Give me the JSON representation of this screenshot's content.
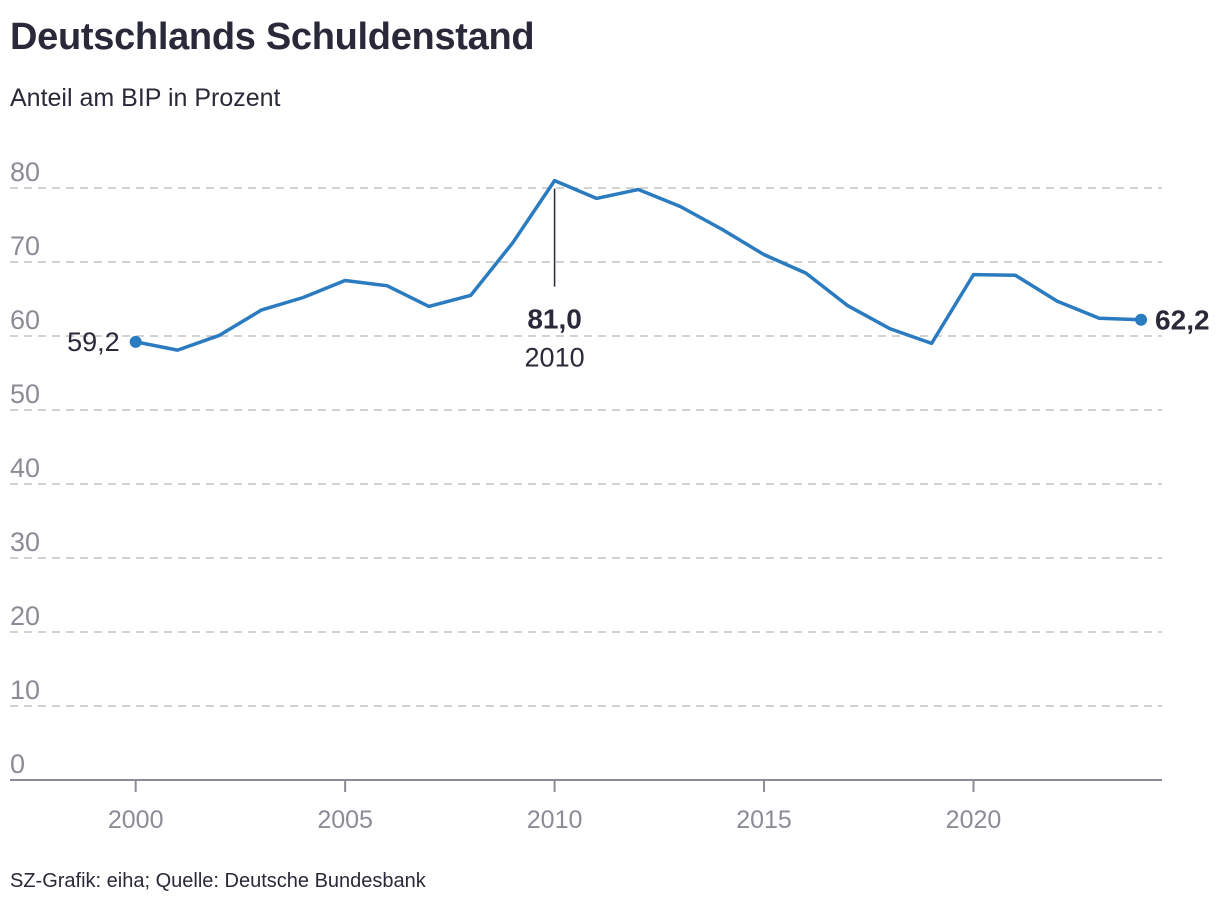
{
  "header": {
    "title": "Deutschlands Schuldenstand",
    "subtitle": "Anteil am BIP in Prozent"
  },
  "footer": {
    "source": "SZ-Grafik: eiha; Quelle: Deutsche Bundesbank"
  },
  "colors": {
    "line": "#2a7bbf",
    "grid": "#c4c4c4",
    "axis": "#8c8c96",
    "text": "#29293a"
  },
  "chart_data": {
    "type": "line",
    "title": "Deutschlands Schuldenstand",
    "subtitle": "Anteil am BIP in Prozent",
    "xlabel": "",
    "ylabel": "",
    "xlim": [
      1997.0,
      2024.5
    ],
    "ylim": [
      0,
      80
    ],
    "yticks": [
      0,
      10,
      20,
      30,
      40,
      50,
      60,
      70,
      80
    ],
    "ytick_labels": [
      "0",
      "10",
      "20",
      "30",
      "40",
      "50",
      "60",
      "70",
      "80"
    ],
    "xticks": [
      2000,
      2005,
      2010,
      2015,
      2020
    ],
    "xtick_labels": [
      "2000",
      "2005",
      "2010",
      "2015",
      "2020"
    ],
    "grid": true,
    "series": [
      {
        "name": "Schuldenstand",
        "x": [
          2000,
          2001,
          2002,
          2003,
          2004,
          2005,
          2006,
          2007,
          2008,
          2009,
          2010,
          2011,
          2012,
          2013,
          2014,
          2015,
          2016,
          2017,
          2018,
          2019,
          2020,
          2021,
          2022,
          2023,
          2024
        ],
        "values": [
          59.2,
          58.1,
          60.1,
          63.5,
          65.2,
          67.5,
          66.8,
          64.0,
          65.5,
          72.6,
          81.0,
          78.6,
          79.8,
          77.5,
          74.4,
          71.0,
          68.5,
          64.1,
          61.0,
          59.0,
          68.3,
          68.2,
          64.7,
          62.4,
          62.2
        ]
      }
    ],
    "annotations": [
      {
        "x": 2000,
        "value": 59.2,
        "text": "59,2"
      },
      {
        "x": 2010,
        "value": 81.0,
        "text": "81,0",
        "sublabel": "2010"
      },
      {
        "x": 2024,
        "value": 62.2,
        "text": "62,2"
      }
    ]
  }
}
